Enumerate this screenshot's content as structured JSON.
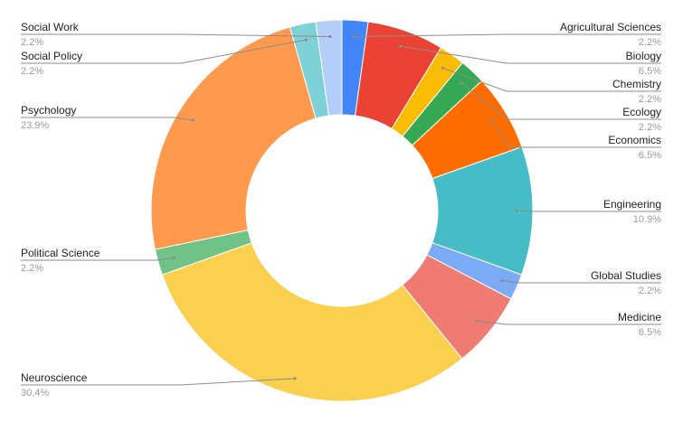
{
  "chart_data": {
    "type": "pie",
    "donut": true,
    "legend": "none",
    "slices": [
      {
        "label": "Agricultural Sciences",
        "value": 2.2,
        "value_label": "2.2%",
        "color": "#4285f4"
      },
      {
        "label": "Biology",
        "value": 6.5,
        "value_label": "6.5%",
        "color": "#ea4335"
      },
      {
        "label": "Chemistry",
        "value": 2.2,
        "value_label": "2.2%",
        "color": "#fbbc04"
      },
      {
        "label": "Ecology",
        "value": 2.2,
        "value_label": "2.2%",
        "color": "#34a853"
      },
      {
        "label": "Economics",
        "value": 6.5,
        "value_label": "6.5%",
        "color": "#ff6d01"
      },
      {
        "label": "Engineering",
        "value": 10.9,
        "value_label": "10.9%",
        "color": "#46bdc6"
      },
      {
        "label": "Global Studies",
        "value": 2.2,
        "value_label": "2.2%",
        "color": "#7baaf7"
      },
      {
        "label": "Medicine",
        "value": 6.5,
        "value_label": "6.5%",
        "color": "#f07b72"
      },
      {
        "label": "Neuroscience",
        "value": 30.4,
        "value_label": "30.4%",
        "color": "#fcd04f"
      },
      {
        "label": "Political Science",
        "value": 2.2,
        "value_label": "2.2%",
        "color": "#71c287"
      },
      {
        "label": "Psychology",
        "value": 23.9,
        "value_label": "23.9%",
        "color": "#ff994d"
      },
      {
        "label": "Social Policy",
        "value": 2.2,
        "value_label": "2.2%",
        "color": "#7ed1d7"
      },
      {
        "label": "Social Work",
        "value": 2.2,
        "value_label": "2.2%",
        "color": "#b3cefb"
      }
    ]
  }
}
